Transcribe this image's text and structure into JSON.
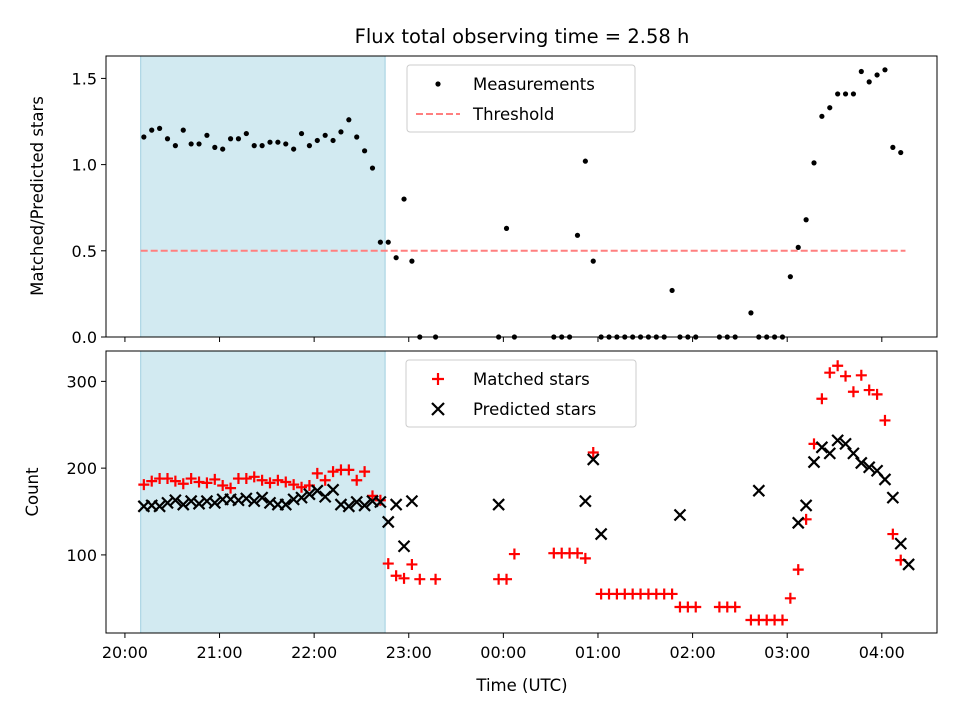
{
  "chart_data": [
    {
      "type": "scatter",
      "title": "Flux total observing time = 2.58 h",
      "xlabel": "",
      "ylabel": "Matched/Predicted stars",
      "ylim": [
        0,
        1.63
      ],
      "yticks": [
        "0.0",
        "0.5",
        "1.0",
        "1.5"
      ],
      "shaded_region": {
        "x_start": "20:10",
        "x_end": "22:45",
        "color": "#add8e6"
      },
      "threshold": {
        "name": "Threshold",
        "value": 0.5,
        "x_start": "20:10",
        "x_end": "04:15",
        "color": "#ff7f7f"
      },
      "legend": {
        "placement": "upper center",
        "entries": [
          "Measurements",
          "Threshold"
        ]
      },
      "series": [
        {
          "name": "Measurements",
          "color": "#000000",
          "marker": "dot",
          "x": [
            "20:12",
            "20:17",
            "20:22",
            "20:27",
            "20:32",
            "20:37",
            "20:42",
            "20:47",
            "20:52",
            "20:57",
            "21:02",
            "21:07",
            "21:12",
            "21:17",
            "21:22",
            "21:27",
            "21:32",
            "21:37",
            "21:42",
            "21:47",
            "21:52",
            "21:57",
            "22:02",
            "22:07",
            "22:12",
            "22:17",
            "22:22",
            "22:27",
            "22:32",
            "22:37",
            "22:42",
            "22:47",
            "22:52",
            "22:57",
            "23:02",
            "23:07",
            "23:17",
            "23:57",
            "00:02",
            "00:07",
            "00:32",
            "00:37",
            "00:42",
            "00:47",
            "00:52",
            "00:57",
            "01:02",
            "01:07",
            "01:12",
            "01:17",
            "01:22",
            "01:27",
            "01:32",
            "01:37",
            "01:42",
            "01:47",
            "01:52",
            "01:57",
            "02:02",
            "02:17",
            "02:22",
            "02:27",
            "02:37",
            "02:42",
            "02:47",
            "02:52",
            "02:57",
            "03:02",
            "03:07",
            "03:12",
            "03:17",
            "03:22",
            "03:27",
            "03:32",
            "03:37",
            "03:42",
            "03:47",
            "03:52",
            "03:57",
            "04:02",
            "04:07",
            "04:12",
            "04:17"
          ],
          "y": [
            1.16,
            1.2,
            1.21,
            1.15,
            1.11,
            1.2,
            1.12,
            1.12,
            1.17,
            1.1,
            1.09,
            1.15,
            1.15,
            1.18,
            1.11,
            1.11,
            1.13,
            1.13,
            1.12,
            1.09,
            1.18,
            1.11,
            1.14,
            1.17,
            1.14,
            1.19,
            1.26,
            1.16,
            1.08,
            0.98,
            0.55,
            0.55,
            0.46,
            0.8,
            0.44,
            0,
            0,
            0,
            0.63,
            0,
            0,
            0,
            0,
            0.59,
            1.02,
            0.44,
            0,
            0,
            0,
            0,
            0,
            0,
            0,
            0,
            0,
            0.27,
            0,
            0,
            0,
            0,
            0,
            0,
            0.14,
            0,
            0,
            0,
            0,
            0.35,
            0.52,
            0.68,
            1.01,
            1.28,
            1.33,
            1.41,
            1.41,
            1.41,
            1.54,
            1.48,
            1.52,
            1.55,
            1.1,
            1.07,
            null
          ]
        }
      ]
    },
    {
      "type": "scatter",
      "title": "",
      "xlabel": "Time (UTC)",
      "ylabel": "Count",
      "ylim": [
        10,
        335
      ],
      "yticks": [
        "100",
        "200",
        "300"
      ],
      "xticks": [
        "20:00",
        "21:00",
        "22:00",
        "23:00",
        "00:00",
        "01:00",
        "02:00",
        "03:00",
        "04:00"
      ],
      "xlim": [
        "19:48",
        "04:35"
      ],
      "legend": {
        "placement": "upper center",
        "entries": [
          "Matched stars",
          "Predicted stars"
        ]
      },
      "series": [
        {
          "name": "Matched stars",
          "color": "#ff0000",
          "marker": "plus",
          "x": [
            "20:12",
            "20:17",
            "20:22",
            "20:27",
            "20:32",
            "20:37",
            "20:42",
            "20:47",
            "20:52",
            "20:57",
            "21:02",
            "21:07",
            "21:12",
            "21:17",
            "21:22",
            "21:27",
            "21:32",
            "21:37",
            "21:42",
            "21:47",
            "21:52",
            "21:57",
            "22:02",
            "22:07",
            "22:12",
            "22:17",
            "22:22",
            "22:27",
            "22:32",
            "22:37",
            "22:42",
            "22:47",
            "22:52",
            "22:57",
            "23:02",
            "23:07",
            "23:17",
            "23:57",
            "00:02",
            "00:07",
            "00:32",
            "00:37",
            "00:42",
            "00:47",
            "00:52",
            "00:57",
            "01:02",
            "01:07",
            "01:12",
            "01:17",
            "01:22",
            "01:27",
            "01:32",
            "01:37",
            "01:42",
            "01:47",
            "01:52",
            "01:57",
            "02:02",
            "02:17",
            "02:22",
            "02:27",
            "02:37",
            "02:42",
            "02:47",
            "02:52",
            "02:57",
            "03:02",
            "03:07",
            "03:12",
            "03:17",
            "03:22",
            "03:27",
            "03:32",
            "03:37",
            "03:42",
            "03:47",
            "03:52",
            "03:57",
            "04:02",
            "04:07",
            "04:12",
            "04:17"
          ],
          "y": [
            181,
            185,
            188,
            188,
            185,
            182,
            188,
            184,
            183,
            187,
            180,
            177,
            188,
            188,
            190,
            186,
            183,
            186,
            184,
            181,
            178,
            180,
            194,
            186,
            196,
            198,
            198,
            186,
            196,
            168,
            163,
            90,
            76,
            73,
            89,
            72,
            72,
            72,
            72,
            101,
            102,
            102,
            102,
            102,
            96,
            218,
            55,
            55,
            55,
            55,
            55,
            55,
            55,
            55,
            55,
            55,
            40,
            40,
            40,
            40,
            40,
            40,
            25,
            25,
            25,
            25,
            25,
            50,
            83,
            141,
            228,
            280,
            310,
            318,
            306,
            288,
            307,
            290,
            285,
            255,
            124,
            94,
            null
          ]
        },
        {
          "name": "Predicted stars",
          "color": "#000000",
          "marker": "x",
          "x": [
            "20:12",
            "20:17",
            "20:22",
            "20:27",
            "20:32",
            "20:37",
            "20:42",
            "20:47",
            "20:52",
            "20:57",
            "21:02",
            "21:07",
            "21:12",
            "21:17",
            "21:22",
            "21:27",
            "21:32",
            "21:37",
            "21:42",
            "21:47",
            "21:52",
            "21:57",
            "22:02",
            "22:07",
            "22:12",
            "22:17",
            "22:22",
            "22:27",
            "22:32",
            "22:37",
            "22:42",
            "22:47",
            "22:52",
            "22:57",
            "23:02",
            "23:57",
            "00:52",
            "00:57",
            "01:02",
            "01:52",
            "02:42",
            "03:07",
            "03:12",
            "03:17",
            "03:22",
            "03:27",
            "03:32",
            "03:37",
            "03:42",
            "03:47",
            "03:52",
            "03:57",
            "04:02",
            "04:07",
            "04:12",
            "04:17"
          ],
          "y": [
            156,
            157,
            156,
            160,
            163,
            158,
            162,
            159,
            162,
            160,
            164,
            164,
            163,
            165,
            162,
            166,
            160,
            158,
            158,
            164,
            166,
            170,
            174,
            167,
            175,
            158,
            156,
            161,
            157,
            162,
            161,
            138,
            158,
            110,
            162,
            158,
            162,
            210,
            124,
            146,
            174,
            137,
            157,
            207,
            224,
            217,
            232,
            228,
            217,
            206,
            201,
            197,
            187,
            166,
            113,
            89
          ]
        }
      ]
    }
  ]
}
